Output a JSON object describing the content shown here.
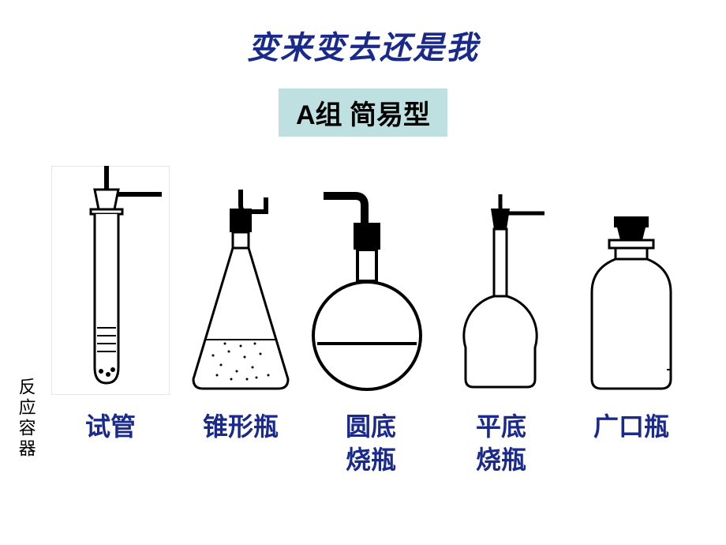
{
  "slide": {
    "title": "变来变去还是我",
    "subtitle": "A组  简易型",
    "side_label": "反应容器",
    "colors": {
      "title_color": "#1a2a8c",
      "subtitle_bg": "#bfe0e0",
      "subtitle_color": "#000000",
      "label_color": "#1a2a8c",
      "stroke": "#000000",
      "fill_black": "#000000",
      "fill_white": "#ffffff",
      "image_border": "#cccccc"
    }
  },
  "items": [
    {
      "id": "test-tube",
      "label": "试管"
    },
    {
      "id": "erlenmeyer",
      "label": "锥形瓶"
    },
    {
      "id": "round-bottom",
      "label": "圆底\n烧瓶"
    },
    {
      "id": "flat-bottom",
      "label": "平底\n烧瓶"
    },
    {
      "id": "wide-mouth",
      "label": "广口瓶"
    }
  ]
}
